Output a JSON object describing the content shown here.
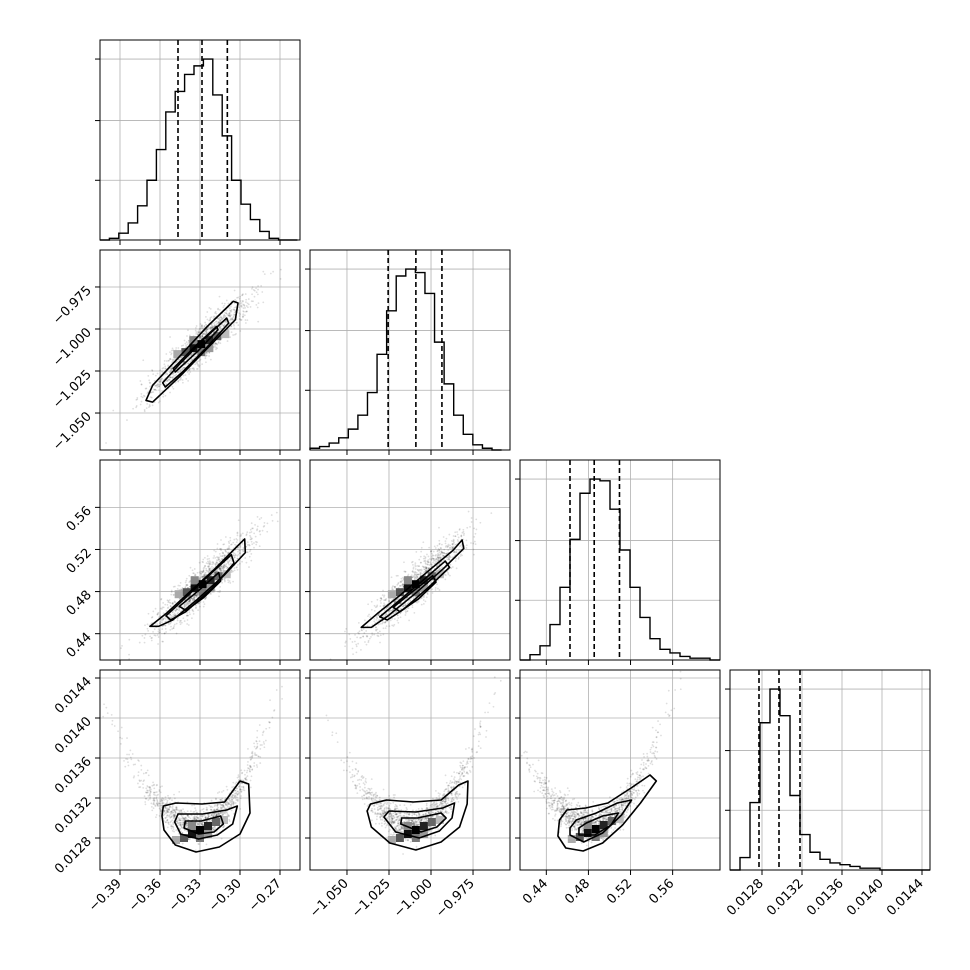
{
  "chart_data": {
    "type": "corner",
    "title": "",
    "grid": true,
    "parameters": [
      {
        "index": 0,
        "range": [
          -0.405,
          -0.255
        ],
        "ticks": [
          -0.39,
          -0.36,
          -0.33,
          -0.3,
          -0.27
        ],
        "tick_labels": [
          "−0.39",
          "−0.36",
          "−0.33",
          "−0.30",
          "−0.27"
        ],
        "quantiles": [
          -0.3465,
          -0.3285,
          -0.3095
        ],
        "hist": {
          "edges": [
            -0.405,
            -0.39795,
            -0.3909,
            -0.38385,
            -0.3768,
            -0.36975,
            -0.3627,
            -0.35565,
            -0.3486,
            -0.34155,
            -0.3345,
            -0.32745,
            -0.3204,
            -0.31335,
            -0.3063,
            -0.29925,
            -0.2922,
            -0.28515,
            -0.2781,
            -0.27105,
            -0.264,
            -0.25695
          ],
          "heights": [
            0.0,
            0.01,
            0.04,
            0.1,
            0.2,
            0.35,
            0.53,
            0.75,
            0.87,
            0.97,
            1.02,
            1.06,
            0.85,
            0.61,
            0.35,
            0.21,
            0.12,
            0.05,
            0.01,
            0.0,
            0.0
          ]
        }
      },
      {
        "index": 1,
        "range": [
          -1.072,
          -0.953
        ],
        "ticks": [
          -1.05,
          -1.025,
          -1.0,
          -0.975
        ],
        "tick_labels": [
          "−1.050",
          "−1.025",
          "−1.000",
          "−0.975"
        ],
        "quantiles": [
          -1.0255,
          -1.009,
          -0.9935
        ],
        "hist": {
          "edges": [
            -1.072,
            -1.0663,
            -1.0606,
            -1.0549,
            -1.0492,
            -1.0435,
            -1.0378,
            -1.0321,
            -1.0264,
            -1.0207,
            -1.015,
            -1.0093,
            -1.0036,
            -0.9979,
            -0.9922,
            -0.9865,
            -0.9808,
            -0.9751,
            -0.9694,
            -0.9637,
            -0.958
          ],
          "heights": [
            0.01,
            0.02,
            0.04,
            0.07,
            0.12,
            0.2,
            0.33,
            0.55,
            0.8,
            1.0,
            1.04,
            1.02,
            0.9,
            0.62,
            0.38,
            0.2,
            0.09,
            0.03,
            0.01,
            0.0
          ]
        }
      },
      {
        "index": 2,
        "range": [
          0.415,
          0.605
        ],
        "ticks": [
          0.44,
          0.48,
          0.52,
          0.56
        ],
        "tick_labels": [
          "0.44",
          "0.48",
          "0.52",
          "0.56"
        ],
        "quantiles": [
          0.4625,
          0.4855,
          0.5095
        ],
        "hist": {
          "edges": [
            0.415,
            0.4245,
            0.434,
            0.4435,
            0.453,
            0.4625,
            0.472,
            0.4815,
            0.491,
            0.5005,
            0.51,
            0.5195,
            0.529,
            0.5385,
            0.548,
            0.5575,
            0.567,
            0.5765,
            0.586,
            0.5955,
            0.605
          ],
          "heights": [
            0.0,
            0.03,
            0.08,
            0.2,
            0.41,
            0.68,
            0.94,
            1.02,
            1.01,
            0.85,
            0.62,
            0.41,
            0.24,
            0.12,
            0.06,
            0.04,
            0.02,
            0.01,
            0.01,
            0.0
          ]
        }
      },
      {
        "index": 3,
        "range": [
          0.01248,
          0.01448
        ],
        "ticks": [
          0.0128,
          0.0132,
          0.0136,
          0.014,
          0.0144
        ],
        "tick_labels": [
          "0.0128",
          "0.0132",
          "0.0136",
          "0.0140",
          "0.0144"
        ],
        "quantiles": [
          0.01277,
          0.01297,
          0.01318
        ],
        "hist": {
          "edges": [
            0.01248,
            0.01258,
            0.01268,
            0.01278,
            0.01288,
            0.01298,
            0.01308,
            0.01318,
            0.01328,
            0.01338,
            0.01348,
            0.01358,
            0.01368,
            0.01378,
            0.01388,
            0.01398,
            0.01408,
            0.01418,
            0.01428,
            0.01438,
            0.01448
          ],
          "heights": [
            0.0,
            0.07,
            0.38,
            0.83,
            1.02,
            0.87,
            0.42,
            0.2,
            0.1,
            0.06,
            0.04,
            0.03,
            0.02,
            0.01,
            0.01,
            0.0,
            0.0,
            0.0,
            0.0,
            0.0
          ]
        }
      }
    ],
    "pairs": [
      {
        "x": 0,
        "y": 1,
        "shape": "linear",
        "center": [
          -0.329,
          -1.009
        ],
        "contours": [
          [
            [
              -0.3705,
              -1.0425
            ],
            [
              -0.3655,
              -1.0335
            ],
            [
              -0.3455,
              -1.0165
            ],
            [
              -0.3245,
              -0.9985
            ],
            [
              -0.305,
              -0.9835
            ],
            [
              -0.3015,
              -0.9845
            ],
            [
              -0.3035,
              -0.9945
            ],
            [
              -0.3245,
              -1.0115
            ],
            [
              -0.3455,
              -1.0285
            ],
            [
              -0.3655,
              -1.0435
            ]
          ],
          [
            [
              -0.358,
              -1.032
            ],
            [
              -0.346,
              -1.0215
            ],
            [
              -0.327,
              -1.006
            ],
            [
              -0.31,
              -0.9935
            ],
            [
              -0.3085,
              -0.9965
            ],
            [
              -0.325,
              -1.011
            ],
            [
              -0.343,
              -1.0255
            ],
            [
              -0.356,
              -1.0345
            ]
          ],
          [
            [
              -0.35,
              -1.0235
            ],
            [
              -0.334,
              -1.0105
            ],
            [
              -0.3175,
              -0.9985
            ],
            [
              -0.3165,
              -1.0005
            ],
            [
              -0.332,
              -1.0135
            ],
            [
              -0.3485,
              -1.0255
            ]
          ]
        ]
      },
      {
        "x": 0,
        "y": 2,
        "shape": "linear",
        "center": [
          -0.328,
          0.487
        ],
        "contours": [
          [
            [
              -0.3675,
              0.447
            ],
            [
              -0.3555,
              0.459
            ],
            [
              -0.34,
              0.477
            ],
            [
              -0.3185,
              0.502
            ],
            [
              -0.3005,
              0.525
            ],
            [
              -0.2965,
              0.53
            ],
            [
              -0.296,
              0.517
            ],
            [
              -0.3115,
              0.496
            ],
            [
              -0.3325,
              0.472
            ],
            [
              -0.3505,
              0.453
            ],
            [
              -0.361,
              0.447
            ]
          ],
          [
            [
              -0.3555,
              0.457
            ],
            [
              -0.3435,
              0.471
            ],
            [
              -0.3245,
              0.494
            ],
            [
              -0.3065,
              0.515
            ],
            [
              -0.3045,
              0.507
            ],
            [
              -0.321,
              0.483
            ],
            [
              -0.3405,
              0.461
            ],
            [
              -0.352,
              0.453
            ]
          ],
          [
            [
              -0.3455,
              0.466
            ],
            [
              -0.331,
              0.481
            ],
            [
              -0.316,
              0.498
            ],
            [
              -0.3145,
              0.49
            ],
            [
              -0.3275,
              0.474
            ],
            [
              -0.3405,
              0.462
            ]
          ]
        ]
      },
      {
        "x": 1,
        "y": 2,
        "shape": "linear",
        "center": [
          -1.009,
          0.487
        ],
        "contours": [
          [
            [
              -1.0415,
              0.446
            ],
            [
              -1.032,
              0.459
            ],
            [
              -1.018,
              0.477
            ],
            [
              -1.002,
              0.499
            ],
            [
              -0.987,
              0.519
            ],
            [
              -0.9815,
              0.529
            ],
            [
              -0.9805,
              0.521
            ],
            [
              -0.9925,
              0.502
            ],
            [
              -1.0095,
              0.478
            ],
            [
              -1.0255,
              0.457
            ],
            [
              -1.0355,
              0.446
            ]
          ],
          [
            [
              -1.0305,
              0.456
            ],
            [
              -1.02,
              0.47
            ],
            [
              -1.006,
              0.489
            ],
            [
              -0.9915,
              0.509
            ],
            [
              -0.989,
              0.503
            ],
            [
              -1.0015,
              0.484
            ],
            [
              -1.0165,
              0.463
            ],
            [
              -1.026,
              0.453
            ]
          ],
          [
            [
              -1.0225,
              0.465
            ],
            [
              -1.011,
              0.48
            ],
            [
              -0.999,
              0.495
            ],
            [
              -0.997,
              0.489
            ],
            [
              -1.0075,
              0.473
            ],
            [
              -1.0185,
              0.461
            ]
          ]
        ]
      },
      {
        "x": 0,
        "y": 3,
        "shape": "curved",
        "center": [
          -0.33,
          0.01292
        ],
        "contours": [
          [
            [
              -0.3585,
              0.01302
            ],
            [
              -0.357,
              0.01288
            ],
            [
              -0.3485,
              0.01273
            ],
            [
              -0.333,
              0.01266
            ],
            [
              -0.3155,
              0.01271
            ],
            [
              -0.3,
              0.01284
            ],
            [
              -0.2925,
              0.01305
            ],
            [
              -0.2935,
              0.01334
            ],
            [
              -0.3,
              0.01337
            ],
            [
              -0.3115,
              0.01316
            ],
            [
              -0.3285,
              0.01314
            ],
            [
              -0.348,
              0.01315
            ],
            [
              -0.3575,
              0.01312
            ]
          ],
          [
            [
              -0.349,
              0.01296
            ],
            [
              -0.3445,
              0.01284
            ],
            [
              -0.331,
              0.01279
            ],
            [
              -0.317,
              0.01283
            ],
            [
              -0.3055,
              0.01294
            ],
            [
              -0.302,
              0.01312
            ],
            [
              -0.31,
              0.01308
            ],
            [
              -0.328,
              0.01304
            ],
            [
              -0.3465,
              0.01304
            ]
          ],
          [
            [
              -0.342,
              0.0129
            ],
            [
              -0.331,
              0.01284
            ],
            [
              -0.3195,
              0.01286
            ],
            [
              -0.3125,
              0.01294
            ],
            [
              -0.3145,
              0.01302
            ],
            [
              -0.329,
              0.01297
            ],
            [
              -0.341,
              0.01297
            ]
          ]
        ]
      },
      {
        "x": 1,
        "y": 3,
        "shape": "curved",
        "center": [
          -1.009,
          0.01292
        ],
        "contours": [
          [
            [
              -1.038,
              0.01307
            ],
            [
              -1.0355,
              0.01291
            ],
            [
              -1.0245,
              0.01275
            ],
            [
              -1.009,
              0.01268
            ],
            [
              -0.994,
              0.01276
            ],
            [
              -0.983,
              0.01291
            ],
            [
              -0.9785,
              0.01314
            ],
            [
              -0.978,
              0.01337
            ],
            [
              -0.9835,
              0.01333
            ],
            [
              -0.994,
              0.01318
            ],
            [
              -1.0105,
              0.01316
            ],
            [
              -1.0265,
              0.01318
            ],
            [
              -1.036,
              0.01314
            ]
          ],
          [
            [
              -1.028,
              0.01301
            ],
            [
              -1.021,
              0.01286
            ],
            [
              -1.007,
              0.0128
            ],
            [
              -0.995,
              0.01287
            ],
            [
              -0.9875,
              0.013
            ],
            [
              -0.986,
              0.01315
            ],
            [
              -0.993,
              0.0131
            ],
            [
              -1.009,
              0.01306
            ],
            [
              -1.025,
              0.01307
            ]
          ],
          [
            [
              -1.018,
              0.01294
            ],
            [
              -1.006,
              0.01286
            ],
            [
              -0.9965,
              0.01291
            ],
            [
              -0.991,
              0.013
            ],
            [
              -0.994,
              0.01305
            ],
            [
              -1.008,
              0.013
            ],
            [
              -1.0175,
              0.013
            ]
          ]
        ]
      },
      {
        "x": 2,
        "y": 3,
        "shape": "curved",
        "center": [
          0.487,
          0.01293
        ],
        "contours": [
          [
            [
              0.451,
              0.01282
            ],
            [
              0.4585,
              0.0127
            ],
            [
              0.475,
              0.01267
            ],
            [
              0.4935,
              0.01275
            ],
            [
              0.5125,
              0.01293
            ],
            [
              0.5295,
              0.01315
            ],
            [
              0.5445,
              0.01337
            ],
            [
              0.5385,
              0.01343
            ],
            [
              0.5205,
              0.0133
            ],
            [
              0.4985,
              0.01315
            ],
            [
              0.4775,
              0.0131
            ],
            [
              0.4595,
              0.01308
            ],
            [
              0.4525,
              0.01298
            ]
          ],
          [
            [
              0.4625,
              0.01283
            ],
            [
              0.4755,
              0.01276
            ],
            [
              0.4935,
              0.01285
            ],
            [
              0.5115,
              0.01303
            ],
            [
              0.521,
              0.01318
            ],
            [
              0.5075,
              0.01315
            ],
            [
              0.4875,
              0.01305
            ],
            [
              0.4685,
              0.01298
            ],
            [
              0.4625,
              0.0129
            ]
          ],
          [
            [
              0.471,
              0.01283
            ],
            [
              0.486,
              0.01283
            ],
            [
              0.5015,
              0.01293
            ],
            [
              0.5085,
              0.01305
            ],
            [
              0.4935,
              0.01302
            ],
            [
              0.478,
              0.01295
            ],
            [
              0.471,
              0.0129
            ]
          ]
        ]
      }
    ]
  }
}
